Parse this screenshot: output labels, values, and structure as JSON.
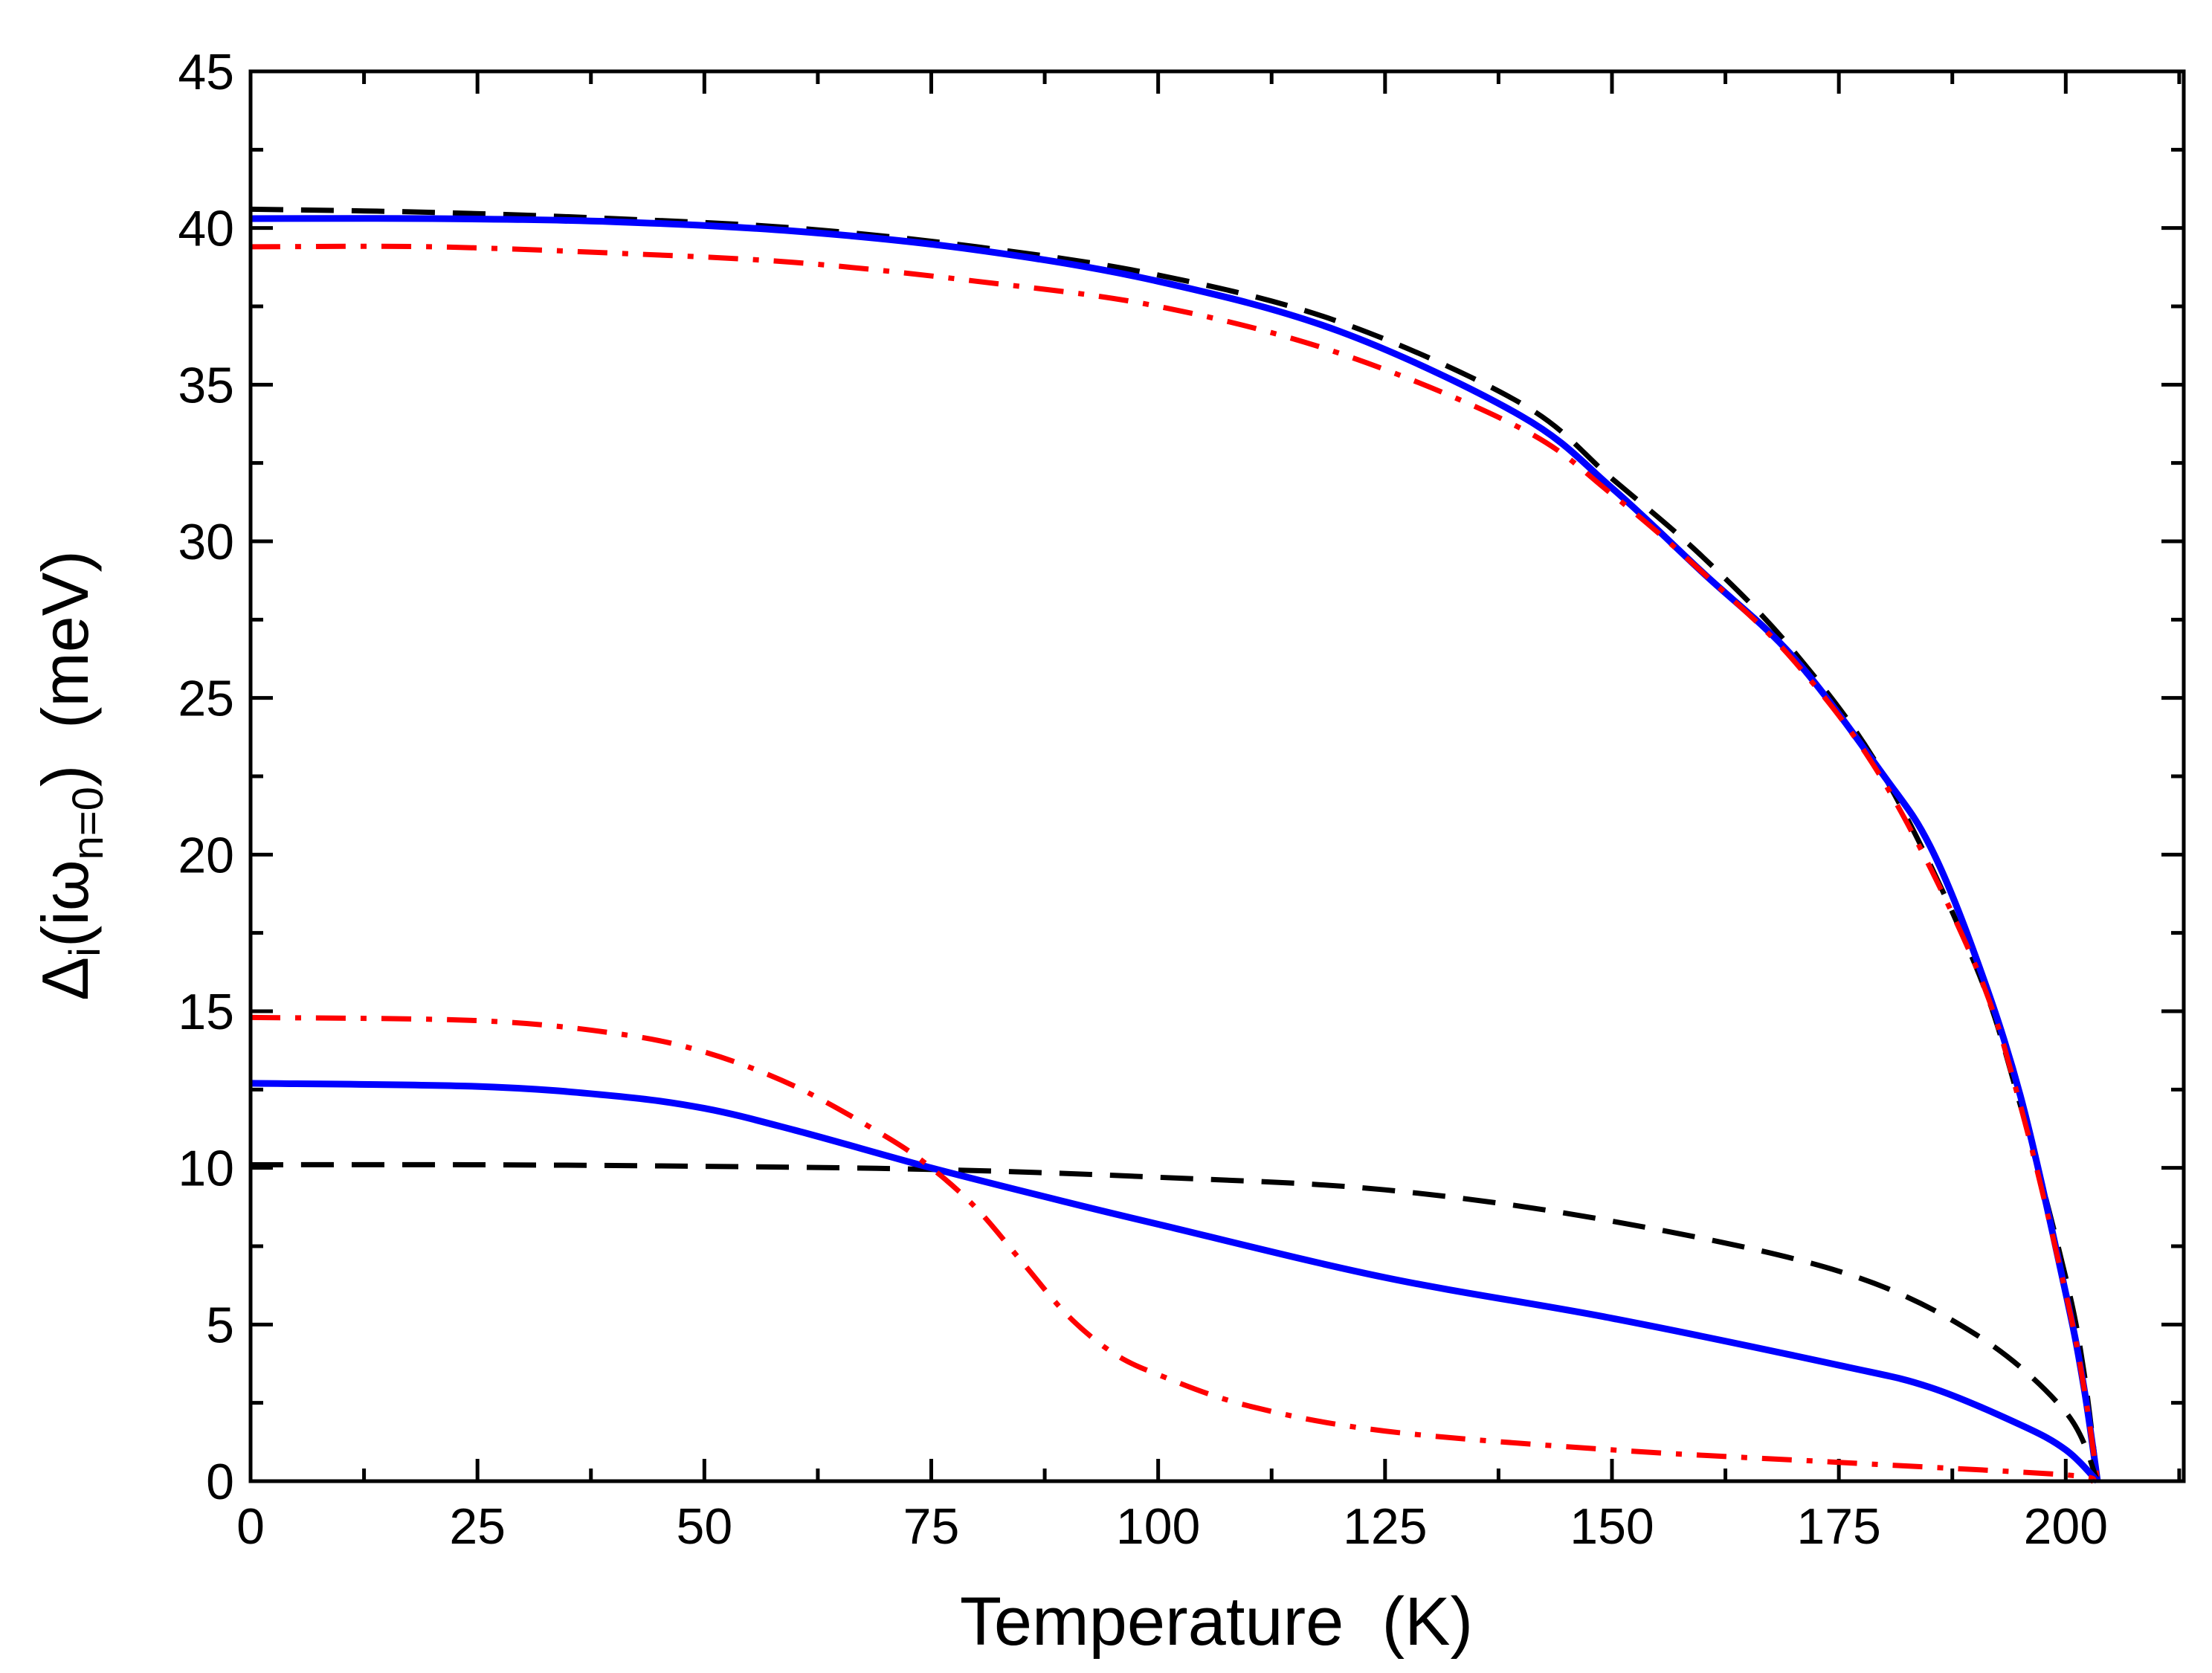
{
  "chart_data": {
    "type": "line",
    "title": "",
    "xlabel": "Temperature  (K)",
    "ylabel": {
      "symbol": "Δ",
      "symbol_sub": "i",
      "open": "(iω",
      "sub": "n=0",
      "close": ")",
      "units": "  (meV)"
    },
    "xlim": [
      0,
      213
    ],
    "ylim": [
      0,
      45
    ],
    "xticks": [
      "0",
      "25",
      "50",
      "75",
      "100",
      "125",
      "150",
      "175",
      "200"
    ],
    "yticks": [
      "0",
      "5",
      "10",
      "15",
      "20",
      "25",
      "30",
      "35",
      "40",
      "45"
    ],
    "grid": false,
    "legend": "none",
    "series": [
      {
        "name": "black-dashed-large-gap",
        "color": "#000000",
        "style": "dashed",
        "x": [
          0,
          20,
          40,
          60,
          80,
          100,
          120,
          140,
          150,
          160,
          170,
          180,
          190,
          195,
          200,
          202,
          203.5
        ],
        "y": [
          40.6,
          40.5,
          40.3,
          40.0,
          39.4,
          38.5,
          37.0,
          34.4,
          32.0,
          29.5,
          26.5,
          22.5,
          16.5,
          12.0,
          6.5,
          3.5,
          0
        ]
      },
      {
        "name": "blue-solid-large-gap",
        "color": "#0000ff",
        "style": "solid",
        "x": [
          0,
          20,
          40,
          60,
          80,
          100,
          120,
          140,
          150,
          160,
          170,
          180,
          185,
          190,
          195,
          200,
          202,
          203.5
        ],
        "y": [
          40.3,
          40.3,
          40.2,
          39.9,
          39.3,
          38.3,
          36.7,
          34.0,
          31.7,
          29.0,
          26.3,
          22.5,
          20.3,
          16.8,
          12.3,
          6.0,
          3.0,
          0
        ]
      },
      {
        "name": "red-dashdot-large-gap",
        "color": "#ff0000",
        "style": "dashdot",
        "x": [
          0,
          20,
          40,
          60,
          80,
          100,
          120,
          140,
          150,
          160,
          170,
          180,
          190,
          195,
          200,
          202,
          203.5
        ],
        "y": [
          39.4,
          39.4,
          39.2,
          38.9,
          38.3,
          37.5,
          36.0,
          33.6,
          31.5,
          29.0,
          26.2,
          22.3,
          16.5,
          12.0,
          6.0,
          3.0,
          0
        ]
      },
      {
        "name": "black-dashed-small-gap",
        "color": "#000000",
        "style": "dashed",
        "x": [
          0,
          25,
          50,
          75,
          100,
          125,
          150,
          175,
          190,
          200,
          203.5
        ],
        "y": [
          10.1,
          10.1,
          10.05,
          9.95,
          9.7,
          9.3,
          8.3,
          6.7,
          4.7,
          2.2,
          0
        ]
      },
      {
        "name": "blue-solid-small-gap",
        "color": "#0000ff",
        "style": "solid",
        "x": [
          0,
          25,
          40,
          50,
          60,
          75,
          90,
          100,
          125,
          150,
          175,
          185,
          195,
          200,
          203.5
        ],
        "y": [
          12.7,
          12.6,
          12.3,
          11.9,
          11.2,
          10.0,
          8.9,
          8.2,
          6.5,
          5.2,
          3.7,
          3.0,
          1.8,
          1.0,
          0
        ]
      },
      {
        "name": "red-dashdot-small-gap",
        "color": "#ff0000",
        "style": "dashdot",
        "x": [
          0,
          25,
          40,
          50,
          60,
          70,
          75,
          80,
          85,
          90,
          95,
          100,
          110,
          125,
          150,
          175,
          200,
          203
        ],
        "y": [
          14.8,
          14.7,
          14.3,
          13.7,
          12.6,
          11.0,
          10.0,
          8.7,
          7.0,
          5.3,
          4.1,
          3.4,
          2.4,
          1.6,
          1.0,
          0.6,
          0.2,
          0
        ]
      }
    ]
  }
}
